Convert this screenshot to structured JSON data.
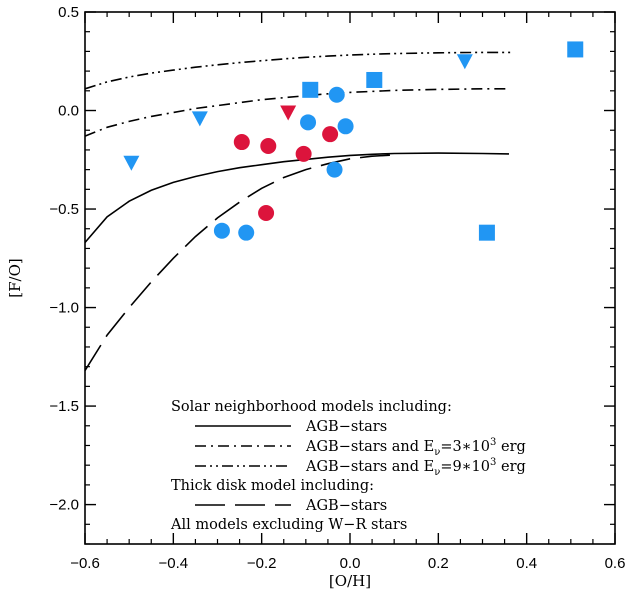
{
  "chart_data": {
    "type": "scatter",
    "xlabel": "[O/H]",
    "ylabel": "[F/O]",
    "xlim": [
      -0.6,
      0.6
    ],
    "ylim": [
      -2.2,
      0.5
    ],
    "xticks": [
      -0.6,
      -0.4,
      -0.2,
      0.0,
      0.2,
      0.4,
      0.6
    ],
    "xtick_labels": [
      "−0.6",
      "−0.4",
      "−0.2",
      "0.0",
      "0.2",
      "0.4",
      "0.6"
    ],
    "yticks": [
      0.5,
      0.0,
      -0.5,
      -1.0,
      -1.5,
      -2.0
    ],
    "ytick_labels": [
      "0.5",
      "0.0",
      "−0.5",
      "−1.0",
      "−1.5",
      "−2.0"
    ],
    "grid": false,
    "colors": {
      "blue": "#2196f3",
      "red": "#dc143c",
      "axis": "#000000"
    },
    "lines": [
      {
        "style": "solid",
        "x": [
          -0.6,
          -0.55,
          -0.5,
          -0.45,
          -0.4,
          -0.35,
          -0.3,
          -0.25,
          -0.2,
          -0.15,
          -0.1,
          -0.05,
          0.0,
          0.05,
          0.1,
          0.2,
          0.3,
          0.36
        ],
        "y": [
          -0.67,
          -0.54,
          -0.46,
          -0.405,
          -0.365,
          -0.335,
          -0.31,
          -0.29,
          -0.275,
          -0.26,
          -0.248,
          -0.237,
          -0.228,
          -0.222,
          -0.218,
          -0.216,
          -0.218,
          -0.22
        ]
      },
      {
        "style": "dashdot",
        "x": [
          -0.6,
          -0.55,
          -0.5,
          -0.45,
          -0.4,
          -0.35,
          -0.3,
          -0.25,
          -0.2,
          -0.15,
          -0.1,
          -0.05,
          0.0,
          0.05,
          0.1,
          0.2,
          0.3,
          0.36
        ],
        "y": [
          -0.13,
          -0.085,
          -0.055,
          -0.03,
          -0.01,
          0.01,
          0.025,
          0.04,
          0.055,
          0.065,
          0.075,
          0.085,
          0.092,
          0.097,
          0.102,
          0.107,
          0.11,
          0.11
        ]
      },
      {
        "style": "dashdotdot",
        "x": [
          -0.6,
          -0.55,
          -0.5,
          -0.45,
          -0.4,
          -0.35,
          -0.3,
          -0.25,
          -0.2,
          -0.15,
          -0.1,
          -0.05,
          0.0,
          0.05,
          0.1,
          0.2,
          0.3,
          0.37
        ],
        "y": [
          0.11,
          0.145,
          0.17,
          0.19,
          0.205,
          0.22,
          0.232,
          0.243,
          0.253,
          0.262,
          0.27,
          0.276,
          0.282,
          0.286,
          0.289,
          0.293,
          0.295,
          0.295
        ]
      },
      {
        "style": "longdash",
        "x": [
          -0.6,
          -0.55,
          -0.5,
          -0.45,
          -0.4,
          -0.35,
          -0.3,
          -0.25,
          -0.2,
          -0.15,
          -0.1,
          -0.05,
          0.0,
          0.05,
          0.1
        ],
        "y": [
          -1.32,
          -1.14,
          -1.0,
          -0.87,
          -0.75,
          -0.64,
          -0.545,
          -0.465,
          -0.395,
          -0.34,
          -0.3,
          -0.27,
          -0.245,
          -0.232,
          -0.225
        ]
      }
    ],
    "series": [
      {
        "marker": "circle",
        "color": "blue",
        "points": [
          [
            -0.095,
            -0.06
          ],
          [
            -0.03,
            0.08
          ],
          [
            -0.01,
            -0.08
          ],
          [
            -0.035,
            -0.3
          ],
          [
            -0.29,
            -0.61
          ],
          [
            -0.235,
            -0.62
          ]
        ]
      },
      {
        "marker": "circle",
        "color": "red",
        "points": [
          [
            -0.245,
            -0.16
          ],
          [
            -0.185,
            -0.18
          ],
          [
            -0.105,
            -0.22
          ],
          [
            -0.045,
            -0.12
          ],
          [
            -0.19,
            -0.52
          ]
        ]
      },
      {
        "marker": "square",
        "color": "blue",
        "points": [
          [
            -0.09,
            0.105
          ],
          [
            0.055,
            0.155
          ],
          [
            0.51,
            0.31
          ],
          [
            0.31,
            -0.62
          ]
        ]
      },
      {
        "marker": "triangle-down",
        "color": "blue",
        "points": [
          [
            -0.495,
            -0.265
          ],
          [
            -0.34,
            -0.04
          ],
          [
            0.26,
            0.25
          ]
        ]
      },
      {
        "marker": "triangle-down",
        "color": "red",
        "points": [
          [
            -0.14,
            -0.01
          ]
        ]
      }
    ],
    "legend": {
      "placement": "bottom-center",
      "heading": "Solar neighborhood models including:",
      "entries": [
        {
          "style": "solid",
          "label": "AGB−stars"
        },
        {
          "style": "dashdot",
          "label_main": "AGB−stars and E",
          "label_sub": "ν",
          "label_mid": "=3∗10",
          "label_sup": "3",
          "label_end": " erg"
        },
        {
          "style": "dashdotdot",
          "label_main": "AGB−stars and E",
          "label_sub": "ν",
          "label_mid": "=9∗10",
          "label_sup": "3",
          "label_end": " erg"
        }
      ],
      "heading2": "Thick disk model including:",
      "entry2": {
        "style": "longdash",
        "label": "AGB−stars"
      },
      "footer": "All models excluding W−R stars"
    }
  }
}
